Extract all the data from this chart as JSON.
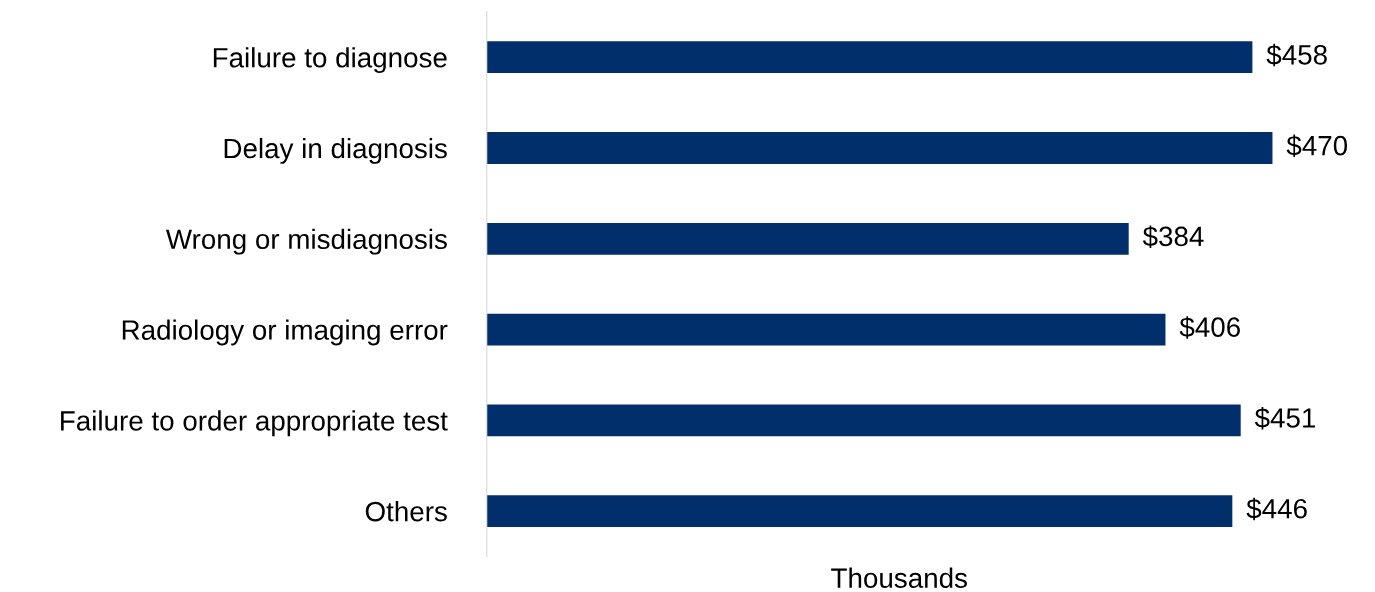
{
  "chart_data": {
    "type": "bar",
    "orientation": "horizontal",
    "xlabel": "Thousands",
    "categories": [
      "Failure to diagnose",
      "Delay in diagnosis",
      "Wrong or misdiagnosis",
      "Radiology or imaging error",
      "Failure to order appropriate test",
      "Others"
    ],
    "values": [
      458,
      470,
      384,
      406,
      451,
      446
    ],
    "value_labels": [
      "$458",
      "$470",
      "$384",
      "$406",
      "$451",
      "$446"
    ],
    "color": "#002f6c",
    "tick_labels": "y",
    "grid": false,
    "legend": false
  }
}
